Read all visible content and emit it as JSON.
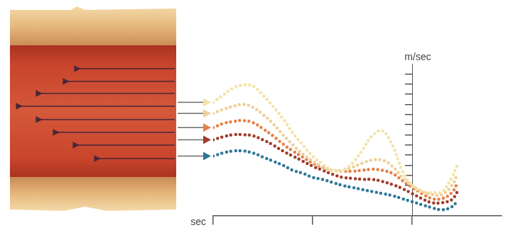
{
  "chart_data": {
    "type": "line",
    "x_label": "sec",
    "y_label": "m/sec",
    "x": [
      0,
      0.1,
      0.2,
      0.3,
      0.4,
      0.5,
      0.6,
      0.7,
      0.8,
      0.9,
      1.0,
      1.1,
      1.2,
      1.3,
      1.4,
      1.5,
      1.6,
      1.7,
      1.8,
      1.9,
      2.0,
      2.1,
      2.2,
      2.3,
      2.4,
      2.45
    ],
    "series": [
      {
        "color": "#f3e3a6",
        "values": [
          1.12,
          1.19,
          1.26,
          1.29,
          1.28,
          1.19,
          1.08,
          0.96,
          0.82,
          0.7,
          0.59,
          0.51,
          0.45,
          0.45,
          0.52,
          0.65,
          0.79,
          0.84,
          0.7,
          0.45,
          0.3,
          0.24,
          0.23,
          0.24,
          0.38,
          0.49
        ]
      },
      {
        "color": "#efcf98",
        "values": [
          1.01,
          1.05,
          1.08,
          1.1,
          1.07,
          1.0,
          0.91,
          0.8,
          0.7,
          0.61,
          0.54,
          0.48,
          0.45,
          0.45,
          0.48,
          0.52,
          0.55,
          0.55,
          0.49,
          0.38,
          0.3,
          0.24,
          0.21,
          0.21,
          0.3,
          0.4
        ]
      },
      {
        "color": "#e58048",
        "values": [
          0.87,
          0.91,
          0.93,
          0.94,
          0.92,
          0.86,
          0.79,
          0.71,
          0.64,
          0.58,
          0.52,
          0.48,
          0.45,
          0.44,
          0.44,
          0.45,
          0.46,
          0.45,
          0.42,
          0.35,
          0.28,
          0.22,
          0.17,
          0.17,
          0.23,
          0.31
        ]
      },
      {
        "color": "#a03c2a",
        "values": [
          0.75,
          0.78,
          0.8,
          0.8,
          0.79,
          0.75,
          0.7,
          0.64,
          0.59,
          0.54,
          0.49,
          0.45,
          0.41,
          0.38,
          0.37,
          0.36,
          0.36,
          0.34,
          0.31,
          0.27,
          0.22,
          0.17,
          0.13,
          0.13,
          0.16,
          0.23
        ]
      },
      {
        "color": "#2f7896",
        "values": [
          0.59,
          0.62,
          0.64,
          0.64,
          0.62,
          0.58,
          0.54,
          0.5,
          0.45,
          0.42,
          0.38,
          0.36,
          0.33,
          0.3,
          0.28,
          0.26,
          0.24,
          0.22,
          0.2,
          0.17,
          0.14,
          0.11,
          0.08,
          0.06,
          0.09,
          0.14
        ]
      }
    ],
    "xlim": [
      0,
      2.9
    ],
    "xticks": [
      0,
      1,
      2
    ],
    "ylim": [
      0,
      1.5
    ],
    "yticks": [
      0.3,
      0.4,
      0.5,
      0.6,
      0.7,
      0.8,
      0.9,
      1.0,
      1.1,
      1.2,
      1.3,
      1.4
    ],
    "grid": false,
    "tick_labels": false,
    "line_style": "dotted"
  }
}
